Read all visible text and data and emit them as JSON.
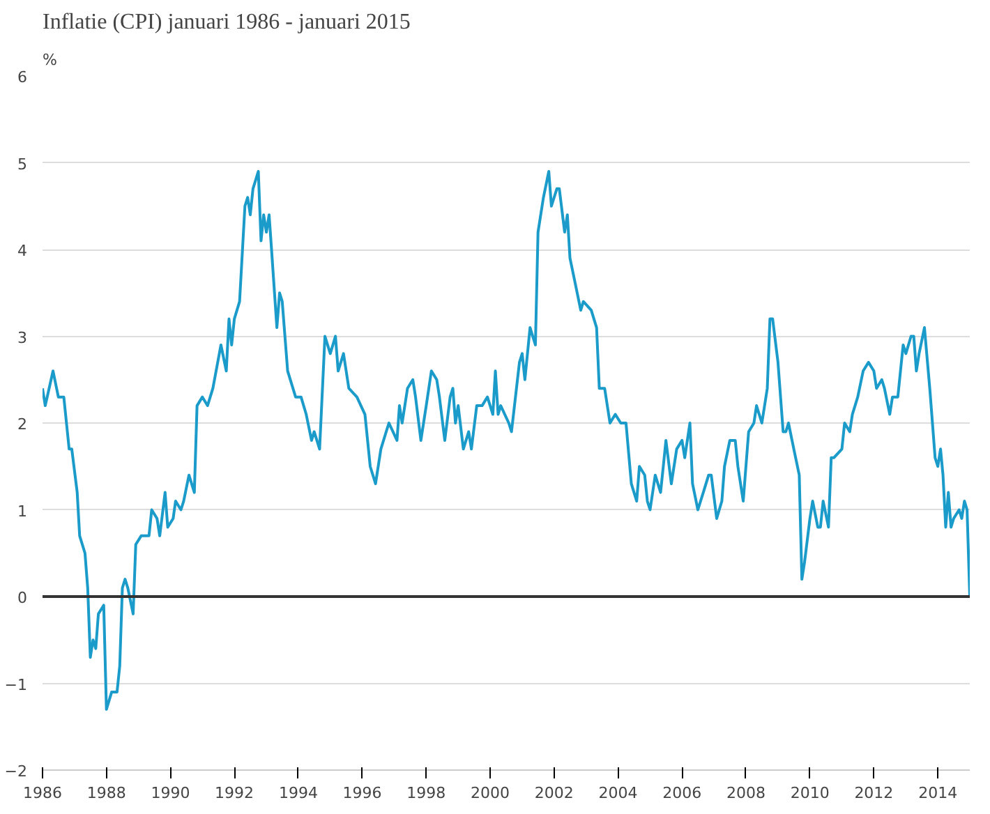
{
  "chart_data": {
    "type": "line",
    "title": "Inflatie (CPI) januari 1986 - januari 2015",
    "ylabel": "%",
    "x": [
      "1986-01",
      "1986-02",
      "1986-05",
      "1986-07",
      "1986-09",
      "1986-11",
      "1986-12",
      "1987-02",
      "1987-03",
      "1987-05",
      "1987-06",
      "1987-07",
      "1987-08",
      "1987-09",
      "1987-10",
      "1987-12",
      "1988-01",
      "1988-03",
      "1988-05",
      "1988-06",
      "1988-07",
      "1988-08",
      "1988-09",
      "1988-11",
      "1988-12",
      "1989-02",
      "1989-05",
      "1989-06",
      "1989-08",
      "1989-09",
      "1989-11",
      "1989-12",
      "1990-02",
      "1990-03",
      "1990-05",
      "1990-06",
      "1990-08",
      "1990-10",
      "1990-11",
      "1991-01",
      "1991-03",
      "1991-05",
      "1991-08",
      "1991-10",
      "1991-11",
      "1991-12",
      "1992-01",
      "1992-03",
      "1992-05",
      "1992-06",
      "1992-07",
      "1992-08",
      "1992-10",
      "1992-11",
      "1992-12",
      "1993-01",
      "1993-02",
      "1993-03",
      "1993-05",
      "1993-06",
      "1993-07",
      "1993-08",
      "1993-09",
      "1993-12",
      "1994-02",
      "1994-04",
      "1994-06",
      "1994-07",
      "1994-09",
      "1994-11",
      "1995-01",
      "1995-03",
      "1995-04",
      "1995-06",
      "1995-08",
      "1995-11",
      "1996-02",
      "1996-04",
      "1996-06",
      "1996-08",
      "1996-10",
      "1996-11",
      "1997-02",
      "1997-03",
      "1997-04",
      "1997-06",
      "1997-08",
      "1997-09",
      "1997-11",
      "1998-01",
      "1998-03",
      "1998-05",
      "1998-06",
      "1998-08",
      "1998-10",
      "1998-11",
      "1998-12",
      "1999-01",
      "1999-03",
      "1999-05",
      "1999-06",
      "1999-08",
      "1999-10",
      "1999-12",
      "2000-02",
      "2000-03",
      "2000-04",
      "2000-05",
      "2000-08",
      "2000-09",
      "2000-12",
      "2001-01",
      "2001-02",
      "2001-04",
      "2001-06",
      "2001-07",
      "2001-09",
      "2001-11",
      "2001-12",
      "2002-02",
      "2002-03",
      "2002-05",
      "2002-06",
      "2002-07",
      "2002-09",
      "2002-11",
      "2002-12",
      "2003-03",
      "2003-05",
      "2003-06",
      "2003-08",
      "2003-10",
      "2003-12",
      "2004-02",
      "2004-04",
      "2004-06",
      "2004-08",
      "2004-09",
      "2004-11",
      "2004-12",
      "2005-01",
      "2005-03",
      "2005-05",
      "2005-06",
      "2005-07",
      "2005-09",
      "2005-11",
      "2006-01",
      "2006-02",
      "2006-04",
      "2006-05",
      "2006-07",
      "2006-09",
      "2006-11",
      "2006-12",
      "2007-02",
      "2007-04",
      "2007-05",
      "2007-07",
      "2007-09",
      "2007-10",
      "2007-12",
      "2008-02",
      "2008-04",
      "2008-05",
      "2008-07",
      "2008-09",
      "2008-10",
      "2008-11",
      "2009-01",
      "2009-03",
      "2009-04",
      "2009-05",
      "2009-07",
      "2009-09",
      "2009-10",
      "2009-11",
      "2010-01",
      "2010-02",
      "2010-04",
      "2010-05",
      "2010-06",
      "2010-08",
      "2010-09",
      "2010-10",
      "2011-01",
      "2011-02",
      "2011-04",
      "2011-05",
      "2011-07",
      "2011-09",
      "2011-11",
      "2012-01",
      "2012-02",
      "2012-04",
      "2012-05",
      "2012-07",
      "2012-08",
      "2012-10",
      "2012-12",
      "2013-01",
      "2013-03",
      "2013-04",
      "2013-05",
      "2013-06",
      "2013-08",
      "2013-10",
      "2013-12",
      "2014-01",
      "2014-02",
      "2014-03",
      "2014-04",
      "2014-05",
      "2014-06",
      "2014-07",
      "2014-09",
      "2014-10",
      "2014-11",
      "2014-12",
      "2015-01"
    ],
    "series": [
      {
        "color": "#1a9bc9",
        "values": [
          2.4,
          2.2,
          2.6,
          2.3,
          2.3,
          1.7,
          1.7,
          1.2,
          0.7,
          0.5,
          0.1,
          -0.7,
          -0.5,
          -0.6,
          -0.2,
          -0.1,
          -1.3,
          -1.1,
          -1.1,
          -0.8,
          0.1,
          0.2,
          0.1,
          -0.2,
          0.6,
          0.7,
          0.7,
          1.0,
          0.9,
          0.7,
          1.2,
          0.8,
          0.9,
          1.1,
          1.0,
          1.1,
          1.4,
          1.2,
          2.2,
          2.3,
          2.2,
          2.4,
          2.9,
          2.6,
          3.2,
          2.9,
          3.2,
          3.4,
          4.5,
          4.6,
          4.4,
          4.7,
          4.9,
          4.1,
          4.4,
          4.2,
          4.4,
          4.0,
          3.1,
          3.5,
          3.4,
          3.0,
          2.6,
          2.3,
          2.3,
          2.1,
          1.8,
          1.9,
          1.7,
          3.0,
          2.8,
          3.0,
          2.6,
          2.8,
          2.4,
          2.3,
          2.1,
          1.5,
          1.3,
          1.7,
          1.9,
          2.0,
          1.8,
          2.2,
          2.0,
          2.4,
          2.5,
          2.3,
          1.8,
          2.2,
          2.6,
          2.5,
          2.3,
          1.8,
          2.3,
          2.4,
          2.0,
          2.2,
          1.7,
          1.9,
          1.7,
          2.2,
          2.2,
          2.3,
          2.1,
          2.6,
          2.1,
          2.2,
          2.0,
          1.9,
          2.7,
          2.8,
          2.5,
          3.1,
          2.9,
          4.2,
          4.6,
          4.9,
          4.5,
          4.7,
          4.7,
          4.2,
          4.4,
          3.9,
          3.6,
          3.3,
          3.4,
          3.3,
          3.1,
          2.4,
          2.4,
          2.0,
          2.1,
          2.0,
          2.0,
          1.3,
          1.1,
          1.5,
          1.4,
          1.1,
          1.0,
          1.4,
          1.2,
          1.5,
          1.8,
          1.3,
          1.7,
          1.8,
          1.6,
          2.0,
          1.3,
          1.0,
          1.2,
          1.4,
          1.4,
          0.9,
          1.1,
          1.5,
          1.8,
          1.8,
          1.5,
          1.1,
          1.9,
          2.0,
          2.2,
          2.0,
          2.4,
          3.2,
          3.2,
          2.7,
          1.9,
          1.9,
          2.0,
          1.7,
          1.4,
          0.2,
          0.4,
          0.9,
          1.1,
          0.8,
          0.8,
          1.1,
          0.8,
          1.6,
          1.6,
          1.7,
          2.0,
          1.9,
          2.1,
          2.3,
          2.6,
          2.7,
          2.6,
          2.4,
          2.5,
          2.4,
          2.1,
          2.3,
          2.3,
          2.9,
          2.8,
          3.0,
          3.0,
          2.6,
          2.8,
          3.1,
          2.4,
          1.6,
          1.5,
          1.7,
          1.4,
          0.8,
          1.2,
          0.8,
          0.9,
          1.0,
          0.9,
          1.1,
          1.0,
          0.0
        ]
      }
    ],
    "xlim": [
      "1986-01",
      "2015-01"
    ],
    "ylim": [
      -2,
      6
    ],
    "yticks": [
      -2,
      -1,
      0,
      1,
      2,
      3,
      4,
      5,
      6
    ],
    "xticks": [
      "1986",
      "1988",
      "1990",
      "1992",
      "1994",
      "1996",
      "1998",
      "2000",
      "2002",
      "2004",
      "2006",
      "2008",
      "2010",
      "2012",
      "2014"
    ],
    "ref_lines": [
      {
        "axis": "y",
        "value": 0,
        "color": "#333333"
      }
    ],
    "grid": "y",
    "line_style": "solid"
  }
}
